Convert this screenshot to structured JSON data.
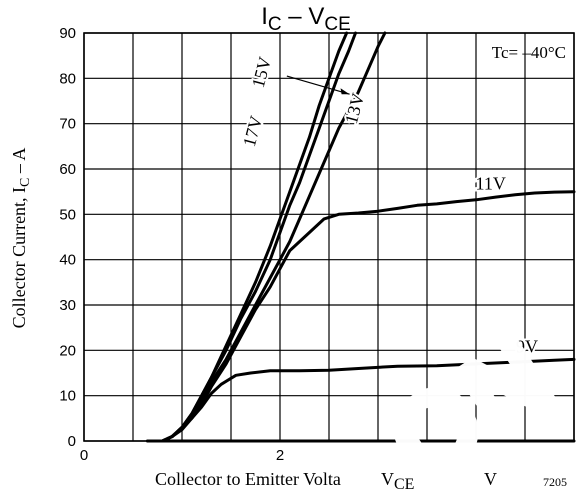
{
  "chart_data": {
    "type": "line",
    "title_main": "I",
    "title_sub1": "C",
    "title_mid": " – V",
    "title_sub2": "CE",
    "ylabel_main": "Collector Current, I",
    "ylabel_sub": "C",
    "ylabel_unit": " – A",
    "xlabel_main": "Collector to Emitter Volta",
    "xlabel_v": "V",
    "xlabel_sub": "CE",
    "xlabel_unit": "V",
    "annotation": "Tc= –40°C",
    "figure_code": "7205",
    "watermark": "ON",
    "xlim": [
      0,
      5
    ],
    "ylim": [
      0,
      90
    ],
    "xticks": [
      {
        "v": 0,
        "label": "0"
      },
      {
        "v": 2,
        "label": "2"
      }
    ],
    "yticks": [
      0,
      10,
      20,
      30,
      40,
      50,
      60,
      70,
      80,
      90
    ],
    "grid": true,
    "series": [
      {
        "name": "17V",
        "points": [
          [
            0.65,
            0
          ],
          [
            0.8,
            0
          ],
          [
            0.9,
            1
          ],
          [
            1.0,
            3
          ],
          [
            1.1,
            6
          ],
          [
            1.2,
            10
          ],
          [
            1.3,
            14
          ],
          [
            1.45,
            21
          ],
          [
            1.6,
            28
          ],
          [
            1.75,
            35
          ],
          [
            1.9,
            43
          ],
          [
            2.0,
            49
          ],
          [
            2.1,
            55
          ],
          [
            2.2,
            61
          ],
          [
            2.3,
            67
          ],
          [
            2.4,
            74
          ],
          [
            2.5,
            80
          ],
          [
            2.6,
            86
          ],
          [
            2.68,
            90
          ]
        ]
      },
      {
        "name": "15V",
        "points": [
          [
            0.65,
            0
          ],
          [
            0.8,
            0
          ],
          [
            0.9,
            1
          ],
          [
            1.0,
            3
          ],
          [
            1.1,
            6
          ],
          [
            1.2,
            10
          ],
          [
            1.3,
            14
          ],
          [
            1.45,
            20
          ],
          [
            1.6,
            27
          ],
          [
            1.75,
            33
          ],
          [
            1.9,
            40
          ],
          [
            2.0,
            46
          ],
          [
            2.1,
            52
          ],
          [
            2.2,
            57
          ],
          [
            2.3,
            63
          ],
          [
            2.4,
            69
          ],
          [
            2.5,
            75
          ],
          [
            2.6,
            81
          ],
          [
            2.7,
            86
          ],
          [
            2.77,
            90
          ]
        ]
      },
      {
        "name": "13V",
        "points": [
          [
            0.65,
            0
          ],
          [
            0.8,
            0
          ],
          [
            0.9,
            1
          ],
          [
            1.0,
            3
          ],
          [
            1.1,
            5
          ],
          [
            1.2,
            9
          ],
          [
            1.3,
            13
          ],
          [
            1.45,
            18
          ],
          [
            1.6,
            24
          ],
          [
            1.75,
            30
          ],
          [
            1.85,
            34
          ],
          [
            2.0,
            40
          ],
          [
            2.1,
            44
          ],
          [
            2.2,
            49
          ],
          [
            2.3,
            54
          ],
          [
            2.4,
            59
          ],
          [
            2.5,
            64
          ],
          [
            2.6,
            69
          ],
          [
            2.7,
            73
          ],
          [
            2.8,
            77
          ],
          [
            2.9,
            82
          ],
          [
            3.0,
            87
          ],
          [
            3.07,
            90
          ]
        ]
      },
      {
        "name": "11V",
        "points": [
          [
            0.65,
            0
          ],
          [
            0.8,
            0
          ],
          [
            0.9,
            1
          ],
          [
            1.0,
            3
          ],
          [
            1.1,
            5
          ],
          [
            1.2,
            8
          ],
          [
            1.3,
            12
          ],
          [
            1.45,
            17
          ],
          [
            1.6,
            23
          ],
          [
            1.75,
            29
          ],
          [
            1.9,
            34
          ],
          [
            2.0,
            38
          ],
          [
            2.1,
            42
          ],
          [
            2.3,
            46
          ],
          [
            2.45,
            49
          ],
          [
            2.6,
            50
          ],
          [
            2.8,
            50.3
          ],
          [
            3.0,
            50.7
          ],
          [
            3.2,
            51.3
          ],
          [
            3.4,
            52
          ],
          [
            3.6,
            52.3
          ],
          [
            3.8,
            52.8
          ],
          [
            4.0,
            53.2
          ],
          [
            4.2,
            53.8
          ],
          [
            4.4,
            54.3
          ],
          [
            4.6,
            54.7
          ],
          [
            4.8,
            54.9
          ],
          [
            5.0,
            55
          ]
        ]
      },
      {
        "name": "9V",
        "points": [
          [
            0.65,
            0
          ],
          [
            0.8,
            0
          ],
          [
            0.9,
            1
          ],
          [
            1.0,
            2.5
          ],
          [
            1.1,
            5
          ],
          [
            1.2,
            7.5
          ],
          [
            1.3,
            10.5
          ],
          [
            1.4,
            12.5
          ],
          [
            1.55,
            14.5
          ],
          [
            1.7,
            15
          ],
          [
            1.9,
            15.5
          ],
          [
            2.2,
            15.5
          ],
          [
            2.5,
            15.6
          ],
          [
            2.8,
            16
          ],
          [
            3.2,
            16.5
          ],
          [
            3.6,
            16.6
          ],
          [
            4.0,
            17
          ],
          [
            4.4,
            17.4
          ],
          [
            4.8,
            17.8
          ],
          [
            5.0,
            18
          ]
        ]
      },
      {
        "name": "",
        "points": [
          [
            0.65,
            0
          ],
          [
            5.0,
            0
          ]
        ]
      }
    ],
    "labels": [
      {
        "text": "17V",
        "at": [
          1.78,
          68
        ],
        "rotate": -75
      },
      {
        "text": "15V",
        "at": [
          1.87,
          81
        ],
        "rotate": -75
      },
      {
        "text": "13V",
        "at": [
          2.82,
          73
        ],
        "rotate": -75
      },
      {
        "text": "11V",
        "at": [
          4.15,
          55.5
        ],
        "rotate": 0
      },
      {
        "text": "9V",
        "at": [
          4.52,
          19.5
        ],
        "rotate": 0
      }
    ],
    "pointer": {
      "from": [
        2.07,
        80.5
      ],
      "to": [
        2.71,
        76.5
      ]
    }
  }
}
